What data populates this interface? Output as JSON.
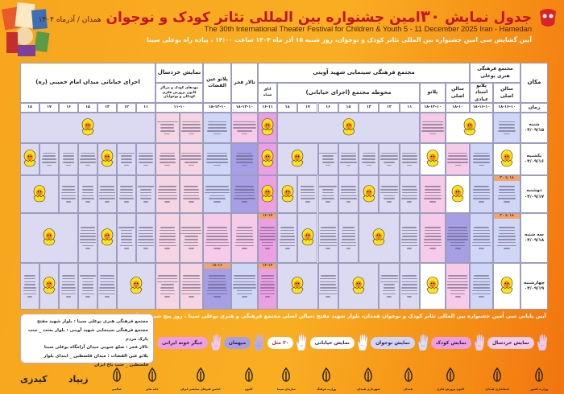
{
  "header": {
    "title_prefix": "جدول نمایش",
    "title_number": "۳۰",
    "title_main": "امین جشنواره بین المللی تئاتر کودک و نوجوان",
    "title_suffix": "همدان / آذرماه ۱۴۰۴",
    "english": "The 30th International Theater Festival for Children & Youth  5 - 11 December 2025   Iran - Hamedan",
    "opening": "آیین گشایش سی امین جشنواره بین المللی تئاتر کودک و نوجوان، روز شنبه ۱۵ آذر ماه ۱۴۰۴ ساعت ۱۴:۰۰ ، پیاده راه بوعلی سینا"
  },
  "colors": {
    "lavender": "#dcd9f3",
    "pink": "#f5cbe9",
    "blue": "#cfd6f6",
    "white": "#ffffff",
    "magenta": "#eaa0e2",
    "violet": "#a79fe5",
    "rose": "#f5d5e4",
    "accent": "#c0152a",
    "orange": "#f7a61e"
  },
  "table": {
    "place_label": "مکان",
    "time_label": "زمان",
    "groups": {
      "buali": "مجتمع فرهنگی هنری بوعلی",
      "avini": "مجتمع فرهنگی سینمایی شهید آوینی",
      "fajr": "تالار فجر",
      "eyn": "پلاتو عین القضات",
      "khord": "نمایش خردسال",
      "street": "اجرای خیابانی میدان امام خمینی (ره)"
    },
    "subs": {
      "buali_salon": "سالن اصلی",
      "buali_plato": "پلاتو استاد عبادی",
      "avini_salon": "سالن اصلی",
      "avini_plato": "پلاتو",
      "mohavate": "محوطه مجتمع (اجرای خیابانی)",
      "black_room": "اتاق سیاه",
      "khord_sub": "مهدهای کودک و مراکز کانون پرورش فکری کودکان و نوجوانان"
    },
    "times": [
      "۱۸-۱۶-۱۰",
      "۱۸-۱۶-۱۰",
      "۱۸-۱۰",
      "۱۸-۱۴-۱۰",
      "۱۱",
      "۱۲",
      "۱۳",
      "۱۵",
      "۱۶",
      "۱۷",
      "۱۸",
      "۱۶-۱۱",
      "۱۸-۱۴-۱۰",
      "۱۸-۱۴-۱۰",
      "۱۱-۱۰",
      "۱۱",
      "۱۲",
      "۱۳",
      "۱۵",
      "۱۶",
      "۱۷",
      "۱۸"
    ],
    "days": [
      {
        "day": "شنبه",
        "date": "۰۴/۰۹/۱۵",
        "cells": [
          [
            1,
            "blue",
            "t"
          ],
          [
            2,
            "white",
            "m"
          ],
          [
            1,
            "pink",
            "t"
          ],
          [
            7,
            "lavender",
            "m"
          ],
          [
            1,
            "magenta",
            "m"
          ],
          [
            1,
            "pink",
            "t"
          ],
          [
            1,
            "blue",
            "t"
          ],
          [
            1,
            "rose",
            "t"
          ],
          [
            1,
            "rose",
            "t"
          ],
          [
            7,
            "lavender",
            "m"
          ]
        ]
      },
      {
        "day": "یکشنبه",
        "date": "۰۴/۰۹/۱۶",
        "cells": [
          [
            1,
            "white",
            "m"
          ],
          [
            1,
            "blue",
            "t"
          ],
          [
            1,
            "pink",
            "t"
          ],
          [
            1,
            "white",
            "m"
          ],
          [
            1,
            "lavender",
            "t"
          ],
          [
            1,
            "lavender",
            "t"
          ],
          [
            1,
            "lavender",
            "t"
          ],
          [
            1,
            "lavender",
            "t"
          ],
          [
            1,
            "lavender",
            "t"
          ],
          [
            2,
            "lavender",
            "m"
          ],
          [
            1,
            "magenta",
            "m"
          ],
          [
            1,
            "violet",
            "t"
          ],
          [
            1,
            "blue",
            "t"
          ],
          [
            1,
            "rose",
            "t"
          ],
          [
            1,
            "rose",
            "t"
          ],
          [
            1,
            "lavender",
            "t"
          ],
          [
            1,
            "lavender",
            "t"
          ],
          [
            1,
            "lavender",
            "m"
          ],
          [
            1,
            "lavender",
            "t"
          ],
          [
            1,
            "lavender",
            "t"
          ],
          [
            1,
            "lavender",
            "t"
          ],
          [
            1,
            "lavender",
            "m"
          ]
        ]
      },
      {
        "day": "دوشنبه",
        "date": "۰۴/۰۹/۱۷",
        "cells": [
          [
            1,
            "blue",
            "t",
            "۱۸ تا ۲۰"
          ],
          [
            1,
            "blue",
            "t"
          ],
          [
            1,
            "white",
            "m"
          ],
          [
            1,
            "pink",
            "t"
          ],
          [
            1,
            "lavender",
            "t"
          ],
          [
            1,
            "lavender",
            "t"
          ],
          [
            1,
            "lavender",
            "m"
          ],
          [
            1,
            "lavender",
            "t"
          ],
          [
            1,
            "lavender",
            "t"
          ],
          [
            1,
            "lavender",
            "t"
          ],
          [
            1,
            "lavender",
            "m"
          ],
          [
            1,
            "magenta",
            "m"
          ],
          [
            1,
            "violet",
            "t"
          ],
          [
            1,
            "blue",
            "t"
          ],
          [
            1,
            "rose",
            "t"
          ],
          [
            1,
            "rose",
            "t"
          ],
          [
            1,
            "lavender",
            "t"
          ],
          [
            1,
            "lavender",
            "t"
          ],
          [
            1,
            "lavender",
            "t"
          ],
          [
            1,
            "lavender",
            "t"
          ],
          [
            1,
            "lavender",
            "t"
          ],
          [
            2,
            "lavender",
            "m"
          ]
        ]
      },
      {
        "day": "سه شنبه",
        "date": "۰۴/۰۹/۱۸",
        "cells": [
          [
            1,
            "blue",
            "t",
            "۱۸ تا ۲۰"
          ],
          [
            1,
            "blue",
            "t"
          ],
          [
            1,
            "violet",
            "t"
          ],
          [
            1,
            "pink",
            "t"
          ],
          [
            1,
            "lavender",
            "t"
          ],
          [
            2,
            "lavender",
            "m"
          ],
          [
            1,
            "lavender",
            "t"
          ],
          [
            1,
            "lavender",
            "t"
          ],
          [
            1,
            "lavender",
            "m"
          ],
          [
            1,
            "lavender",
            "t"
          ],
          [
            1,
            "magenta",
            "t",
            "۱۶-۱۴"
          ],
          [
            1,
            "pink",
            "t"
          ],
          [
            1,
            "pink",
            "t"
          ],
          [
            1,
            "rose",
            "t"
          ],
          [
            1,
            "rose",
            "t"
          ],
          [
            1,
            "lavender",
            "t"
          ],
          [
            1,
            "lavender",
            "t"
          ],
          [
            1,
            "lavender",
            "m"
          ],
          [
            1,
            "lavender",
            "t"
          ],
          [
            3,
            "lavender",
            "m"
          ]
        ]
      },
      {
        "day": "چهارشنبه",
        "date": "۰۴/۰۹/۱۹",
        "cells": [
          [
            1,
            "white",
            "m"
          ],
          [
            1,
            "blue",
            "t"
          ],
          [
            1,
            "pink",
            "t"
          ],
          [
            1,
            "white",
            "m"
          ],
          [
            1,
            "lavender",
            "t"
          ],
          [
            1,
            "lavender",
            "t"
          ],
          [
            2,
            "lavender",
            "m"
          ],
          [
            1,
            "lavender",
            "t"
          ],
          [
            2,
            "lavender",
            "m"
          ],
          [
            1,
            "magenta",
            "t",
            "۱۶-۱۴"
          ],
          [
            1,
            "blue",
            "t"
          ],
          [
            1,
            "violet",
            "t",
            "۱۸-۱۶"
          ],
          [
            1,
            "rose",
            "t"
          ],
          [
            1,
            "rose",
            "t"
          ],
          [
            2,
            "lavender",
            "m"
          ],
          [
            1,
            "lavender",
            "t"
          ],
          [
            1,
            "lavender",
            "t"
          ],
          [
            1,
            "lavender",
            "t"
          ],
          [
            1,
            "lavender",
            "m"
          ],
          [
            1,
            "lavender",
            "t"
          ]
        ]
      }
    ]
  },
  "footer": {
    "closing": "آیین پایانی سی اُمین جشنواره بین المللی تئاتر کودک و نوجوان همدان، بلوار شهید مفتح ،سالن اصلی مجتمع فرهنگی و هنری بوعلی سینا ، روز پنج شنبه ۲۰ آذر ماه ۱۴۰۴ ساعت ۹",
    "addresses": [
      "مجتمع فرهنگی هنری بوعلی سینا : بلوار شهید مفتح",
      "مجتمع فرهنگی سینمایی شهید آوینی : بلوار بعثت _ جنب پارک مردم",
      "تالار فجر : ضلع جنوبی میدان آرامگاه بوعلی سینا",
      "پلاتو عین القضات : میدان فلسطین _ ابتدای بلوار فلسطین _ جنب باغ ایران"
    ],
    "legend": [
      {
        "label": "نمایش خردسال",
        "color": "#f5cbe9",
        "hand": "#f7c9e8"
      },
      {
        "label": "نمایش کودک",
        "color": "#ea9fe2",
        "hand": "#f1d0ee"
      },
      {
        "label": "نمایش نوجوان",
        "color": "#cfd6f6",
        "hand": "#d8dcf5"
      },
      {
        "label": "نمایش خیابانی",
        "color": "#ffffff",
        "hand": "#ffffff"
      },
      {
        "label": "۳۰ مثل",
        "color": "#ffffff",
        "hand": "#ffffff"
      },
      {
        "label": "میهمان",
        "color": "#a79fe5",
        "hand": "#b2a9ea"
      },
      {
        "label": "جیگر خونه ایرانی",
        "color": "#ea9fe2",
        "hand": "#f2c8ee"
      }
    ],
    "logos": [
      "وزارت کشور",
      "استانداری همدان",
      "کانون پرورش فکری",
      "همدان",
      "شهرداری همدان",
      "وزارت فرهنگ",
      "سازمان سیما",
      "کانون",
      "انجمن هنرهای نمایشی ایران",
      "خانه تئاتر",
      "صالمی",
      "زیپاد",
      "کیدزی"
    ]
  }
}
